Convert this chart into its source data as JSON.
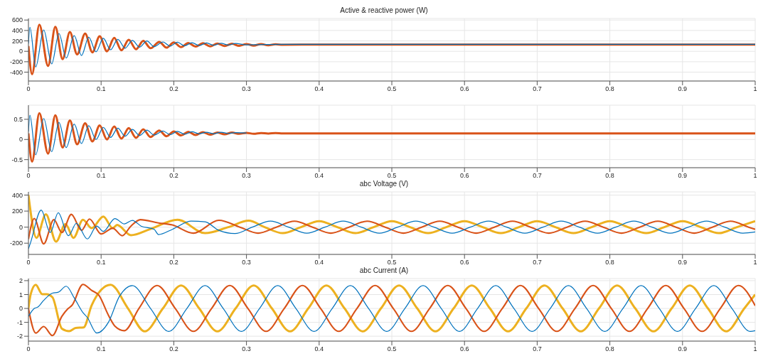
{
  "chart_data": [
    {
      "type": "line",
      "title": "Active & reactive power (W)",
      "xlim": [
        0,
        1
      ],
      "xticks": [
        0,
        0.1,
        0.2,
        0.3,
        0.4,
        0.5,
        0.6,
        0.7,
        0.8,
        0.9,
        1
      ],
      "ylim": [
        -570,
        630
      ],
      "yticks": [
        -400,
        -200,
        0,
        200,
        400,
        600
      ],
      "grid": true,
      "series": [
        {
          "color": "#0072bd",
          "x": [
            0,
            0.002,
            0.01,
            0.021,
            0.032,
            0.042,
            0.052,
            0.063,
            0.073,
            0.083,
            0.093,
            0.103,
            0.113,
            0.123,
            0.133,
            0.143,
            0.153,
            0.163,
            0.173,
            0.185,
            0.195,
            0.205,
            0.215,
            0.225,
            0.235,
            0.245,
            0.255,
            0.265,
            0.275,
            0.285,
            0.3,
            0.35,
            0.4,
            0.5,
            0.6,
            0.7,
            0.8,
            0.9,
            1
          ],
          "values": [
            150,
            460,
            -300,
            410,
            -240,
            340,
            -130,
            300,
            -80,
            270,
            -10,
            250,
            30,
            230,
            60,
            210,
            80,
            200,
            90,
            180,
            100,
            175,
            105,
            165,
            110,
            160,
            115,
            155,
            120,
            150,
            125,
            135,
            135,
            135,
            135,
            135,
            135,
            135,
            135
          ]
        },
        {
          "color": "#d95319",
          "x": [
            0,
            0.005,
            0.015,
            0.027,
            0.037,
            0.047,
            0.057,
            0.067,
            0.078,
            0.088,
            0.098,
            0.108,
            0.118,
            0.128,
            0.138,
            0.148,
            0.158,
            0.168,
            0.18,
            0.19,
            0.2,
            0.21,
            0.22,
            0.23,
            0.24,
            0.25,
            0.26,
            0.27,
            0.28,
            0.29,
            0.3,
            0.31,
            0.32,
            0.33,
            0.34,
            0.35,
            0.4,
            0.5,
            0.6,
            0.7,
            0.8,
            0.9,
            1
          ],
          "values": [
            100,
            -440,
            510,
            -280,
            470,
            -150,
            370,
            -60,
            340,
            -20,
            290,
            0,
            260,
            20,
            220,
            40,
            200,
            60,
            180,
            70,
            170,
            80,
            160,
            90,
            155,
            95,
            150,
            100,
            145,
            105,
            140,
            110,
            140,
            115,
            135,
            125,
            130,
            130,
            130,
            130,
            130,
            130,
            130
          ]
        }
      ]
    },
    {
      "type": "line",
      "xlim": [
        0,
        1
      ],
      "xticks": [
        0,
        0.1,
        0.2,
        0.3,
        0.4,
        0.5,
        0.6,
        0.7,
        0.8,
        0.9,
        1
      ],
      "ylim": [
        -0.7,
        0.85
      ],
      "yticks": [
        -0.5,
        0,
        0.5
      ],
      "grid": true,
      "series": [
        {
          "color": "#0072bd",
          "x": [
            0,
            0.002,
            0.01,
            0.021,
            0.032,
            0.042,
            0.052,
            0.063,
            0.073,
            0.083,
            0.093,
            0.103,
            0.113,
            0.123,
            0.133,
            0.143,
            0.153,
            0.163,
            0.173,
            0.185,
            0.195,
            0.205,
            0.215,
            0.225,
            0.235,
            0.245,
            0.255,
            0.265,
            0.275,
            0.285,
            0.3
          ],
          "values": [
            0.2,
            0.6,
            -0.38,
            0.52,
            -0.3,
            0.42,
            -0.2,
            0.38,
            -0.1,
            0.34,
            0,
            0.3,
            0.05,
            0.28,
            0.08,
            0.25,
            0.1,
            0.23,
            0.11,
            0.21,
            0.12,
            0.2,
            0.13,
            0.19,
            0.14,
            0.18,
            0.14,
            0.18,
            0.15,
            0.17,
            0.16
          ]
        },
        {
          "color": "#d95319",
          "x": [
            0,
            0.005,
            0.015,
            0.027,
            0.037,
            0.047,
            0.057,
            0.067,
            0.078,
            0.088,
            0.098,
            0.108,
            0.118,
            0.128,
            0.138,
            0.148,
            0.158,
            0.168,
            0.18,
            0.19,
            0.2,
            0.21,
            0.22,
            0.23,
            0.24,
            0.25,
            0.26,
            0.27,
            0.28,
            0.29,
            0.3,
            0.31,
            0.32,
            0.33,
            0.34,
            0.35,
            0.4,
            0.5,
            0.6,
            0.7,
            0.8,
            0.9,
            1
          ],
          "values": [
            0.15,
            -0.55,
            0.65,
            -0.35,
            0.6,
            -0.2,
            0.47,
            -0.12,
            0.4,
            -0.05,
            0.35,
            0,
            0.32,
            0.02,
            0.28,
            0.04,
            0.25,
            0.06,
            0.22,
            0.08,
            0.2,
            0.1,
            0.19,
            0.11,
            0.18,
            0.12,
            0.17,
            0.13,
            0.17,
            0.14,
            0.165,
            0.14,
            0.16,
            0.145,
            0.16,
            0.15,
            0.15,
            0.15,
            0.15,
            0.15,
            0.15,
            0.15,
            0.15
          ]
        }
      ]
    },
    {
      "type": "line",
      "title": "abc Voltage (V)",
      "xlim": [
        0,
        1
      ],
      "xticks": [
        0,
        0.1,
        0.2,
        0.3,
        0.4,
        0.5,
        0.6,
        0.7,
        0.8,
        0.9,
        1
      ],
      "ylim": [
        -340,
        440
      ],
      "yticks": [
        -200,
        0,
        200,
        400
      ],
      "grid": true,
      "series": [
        {
          "color": "#0072bd",
          "x": [
            0,
            0.003,
            0.0175,
            0.03,
            0.041,
            0.055,
            0.066,
            0.081,
            0.094,
            0.103,
            0.119,
            0.132,
            0.143,
            0.155,
            0.173,
            0.179,
            0.198,
            0.224,
            0.243,
            0.262,
            0.284,
            0.308,
            0.333,
            0.358,
            0.383,
            0.408,
            0.433,
            0.458,
            0.483,
            0.508,
            0.533,
            0.558,
            0.583,
            0.608,
            0.633,
            0.658,
            0.683,
            0.708,
            0.733,
            0.758,
            0.783,
            0.808,
            0.833,
            0.858,
            0.883,
            0.908,
            0.933,
            0.958,
            0.983,
            1
          ],
          "values": [
            -270,
            -190,
            213,
            -67,
            180,
            -107,
            48,
            -147,
            13,
            -53,
            107,
            40,
            85,
            13,
            -27,
            -93,
            -27,
            75,
            67,
            -40,
            -80,
            0,
            75,
            0,
            -75,
            0,
            75,
            0,
            -75,
            0,
            75,
            0,
            -75,
            0,
            75,
            0,
            -75,
            0,
            75,
            0,
            -75,
            0,
            75,
            0,
            -75,
            0,
            75,
            0,
            -75,
            -60
          ]
        },
        {
          "color": "#d95319",
          "x": [
            0,
            0.008,
            0.021,
            0.035,
            0.046,
            0.059,
            0.073,
            0.084,
            0.1,
            0.116,
            0.129,
            0.141,
            0.154,
            0.179,
            0.198,
            0.227,
            0.262,
            0.291,
            0.316,
            0.341,
            0.366,
            0.391,
            0.416,
            0.441,
            0.466,
            0.491,
            0.516,
            0.541,
            0.566,
            0.591,
            0.616,
            0.641,
            0.666,
            0.691,
            0.716,
            0.741,
            0.766,
            0.791,
            0.816,
            0.841,
            0.866,
            0.891,
            0.916,
            0.941,
            0.966,
            0.991,
            1
          ],
          "values": [
            -150,
            107,
            -208,
            93,
            -67,
            160,
            -40,
            101,
            -85,
            -13,
            -107,
            13,
            93,
            53,
            27,
            -75,
            85,
            0,
            -75,
            0,
            75,
            0,
            -75,
            0,
            75,
            0,
            -75,
            0,
            75,
            0,
            -75,
            0,
            75,
            0,
            -75,
            0,
            75,
            0,
            -75,
            0,
            75,
            0,
            -75,
            0,
            75,
            0,
            -27
          ]
        },
        {
          "color": "#edb120",
          "x": [
            0,
            0.011,
            0.024,
            0.038,
            0.051,
            0.062,
            0.075,
            0.087,
            0.103,
            0.116,
            0.122,
            0.141,
            0.167,
            0.205,
            0.243,
            0.275,
            0.303,
            0.325,
            0.35,
            0.375,
            0.4,
            0.425,
            0.45,
            0.475,
            0.5,
            0.525,
            0.55,
            0.575,
            0.6,
            0.625,
            0.65,
            0.675,
            0.7,
            0.725,
            0.75,
            0.775,
            0.8,
            0.825,
            0.85,
            0.875,
            0.9,
            0.925,
            0.95,
            0.975,
            1
          ],
          "values": [
            400,
            -133,
            160,
            -181,
            40,
            -133,
            93,
            -13,
            133,
            -13,
            27,
            -101,
            -27,
            93,
            -75,
            0,
            80,
            0,
            -75,
            0,
            75,
            0,
            -75,
            0,
            75,
            0,
            -75,
            0,
            75,
            0,
            -75,
            0,
            75,
            0,
            -75,
            0,
            75,
            0,
            -75,
            0,
            75,
            0,
            -75,
            0,
            75
          ]
        }
      ]
    },
    {
      "type": "line",
      "title": "abc Current (A)",
      "xlim": [
        0,
        1
      ],
      "xticks": [
        0,
        0.1,
        0.2,
        0.3,
        0.4,
        0.5,
        0.6,
        0.7,
        0.8,
        0.9,
        1
      ],
      "ylim": [
        -2.35,
        2.15
      ],
      "yticks": [
        -2,
        -1,
        0,
        1,
        2
      ],
      "grid": true,
      "series": [
        {
          "color": "#0072bd",
          "x": [
            0,
            0.008,
            0.013,
            0.021,
            0.033,
            0.041,
            0.052,
            0.063,
            0.075,
            0.081,
            0.094,
            0.11,
            0.125,
            0.143,
            0.168,
            0.193,
            0.218,
            0.243,
            0.268,
            0.293,
            0.318,
            0.343,
            0.368,
            0.393,
            0.418,
            0.443,
            0.468,
            0.493,
            0.518,
            0.543,
            0.568,
            0.593,
            0.618,
            0.643,
            0.668,
            0.693,
            0.718,
            0.743,
            0.768,
            0.793,
            0.818,
            0.843,
            0.868,
            0.893,
            0.918,
            0.943,
            0.968,
            0.993,
            1
          ],
          "values": [
            -0.57,
            0,
            0.1,
            0.58,
            1.1,
            1.17,
            1.6,
            0.76,
            -0.3,
            -0.65,
            -1.77,
            -1,
            0.85,
            1.65,
            0,
            -1.65,
            0,
            1.65,
            0,
            -1.65,
            0,
            1.65,
            0,
            -1.65,
            0,
            1.65,
            0,
            -1.65,
            0,
            1.65,
            0,
            -1.65,
            0,
            1.65,
            0,
            -1.65,
            0,
            1.65,
            0,
            -1.65,
            0,
            1.65,
            0,
            -1.65,
            0,
            1.65,
            0,
            -1.65,
            -1.6
          ]
        },
        {
          "color": "#d95319",
          "x": [
            0,
            0.01,
            0.021,
            0.033,
            0.046,
            0.054,
            0.06,
            0.075,
            0.087,
            0.097,
            0.11,
            0.119,
            0.132,
            0.152,
            0.177,
            0.202,
            0.227,
            0.252,
            0.277,
            0.302,
            0.327,
            0.352,
            0.377,
            0.402,
            0.427,
            0.452,
            0.477,
            0.502,
            0.527,
            0.552,
            0.577,
            0.602,
            0.627,
            0.652,
            0.677,
            0.702,
            0.727,
            0.752,
            0.777,
            0.802,
            0.827,
            0.852,
            0.877,
            0.902,
            0.927,
            0.952,
            0.977,
            1
          ],
          "values": [
            0,
            -1.77,
            -1.3,
            -1.95,
            -0.57,
            -0.04,
            0.23,
            1.73,
            1.3,
            0.94,
            -0.48,
            -1.27,
            -1.6,
            0,
            1.65,
            0,
            -1.65,
            0,
            1.65,
            0,
            -1.65,
            0,
            1.65,
            0,
            -1.65,
            0,
            1.65,
            0,
            -1.65,
            0,
            1.65,
            0,
            -1.65,
            0,
            1.65,
            0,
            -1.65,
            0,
            1.65,
            0,
            -1.65,
            0,
            1.65,
            0,
            -1.65,
            0,
            1.65,
            0.2
          ]
        },
        {
          "color": "#edb120",
          "x": [
            0,
            0.003,
            0.01,
            0.019,
            0.025,
            0.033,
            0.046,
            0.056,
            0.065,
            0.076,
            0.087,
            0.113,
            0.137,
            0.16,
            0.185,
            0.21,
            0.235,
            0.26,
            0.285,
            0.31,
            0.335,
            0.36,
            0.385,
            0.41,
            0.435,
            0.46,
            0.485,
            0.51,
            0.535,
            0.56,
            0.585,
            0.61,
            0.635,
            0.66,
            0.685,
            0.71,
            0.735,
            0.76,
            0.785,
            0.81,
            0.835,
            0.86,
            0.885,
            0.91,
            0.935,
            0.96,
            0.985,
            1
          ],
          "values": [
            0,
            1,
            1.7,
            1.03,
            1.03,
            0.81,
            -1.45,
            -1.63,
            -1.4,
            -1.36,
            0.23,
            1.7,
            0,
            -1.65,
            0,
            1.65,
            0,
            -1.65,
            0,
            1.65,
            0,
            -1.65,
            0,
            1.65,
            0,
            -1.65,
            0,
            1.65,
            0,
            -1.65,
            0,
            1.65,
            0,
            -1.65,
            0,
            1.65,
            0,
            -1.65,
            0,
            1.65,
            0,
            -1.65,
            0,
            1.65,
            0,
            -1.65,
            0,
            1
          ]
        }
      ]
    }
  ]
}
